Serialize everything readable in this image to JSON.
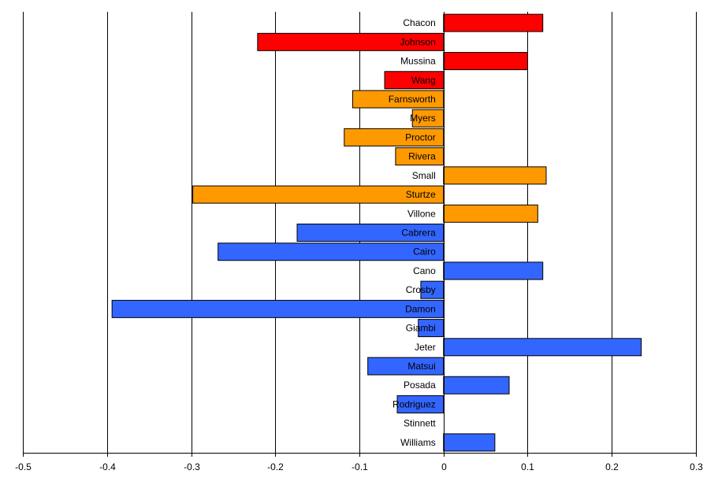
{
  "chart_data": {
    "type": "bar",
    "orientation": "horizontal",
    "title": "",
    "xlabel": "",
    "ylabel": "",
    "xlim": [
      -0.5,
      0.3
    ],
    "xticks": [
      -0.5,
      -0.4,
      -0.3,
      -0.2,
      -0.1,
      0,
      0.1,
      0.2,
      0.3
    ],
    "xtick_labels": [
      "-0.5",
      "-0.4",
      "-0.3",
      "-0.2",
      "-0.1",
      "0",
      "0.1",
      "0.2",
      "0.3"
    ],
    "grid": "vertical",
    "legend": "none",
    "colors": {
      "red": "#ff0000",
      "orange": "#ff9900",
      "blue": "#3366ff"
    },
    "categories": [
      {
        "name": "Chacon",
        "value": 0.118,
        "color": "red"
      },
      {
        "name": "Johnson",
        "value": -0.221,
        "color": "red"
      },
      {
        "name": "Mussina",
        "value": 0.1,
        "color": "red"
      },
      {
        "name": "Wang",
        "value": -0.07,
        "color": "red"
      },
      {
        "name": "Farnsworth",
        "value": -0.108,
        "color": "orange"
      },
      {
        "name": "Myers",
        "value": -0.037,
        "color": "orange"
      },
      {
        "name": "Proctor",
        "value": -0.118,
        "color": "orange"
      },
      {
        "name": "Rivera",
        "value": -0.057,
        "color": "orange"
      },
      {
        "name": "Small",
        "value": 0.122,
        "color": "orange"
      },
      {
        "name": "Sturtze",
        "value": -0.298,
        "color": "orange"
      },
      {
        "name": "Villone",
        "value": 0.112,
        "color": "orange"
      },
      {
        "name": "Cabrera",
        "value": -0.174,
        "color": "blue"
      },
      {
        "name": "Cairo",
        "value": -0.268,
        "color": "blue"
      },
      {
        "name": "Cano",
        "value": 0.118,
        "color": "blue"
      },
      {
        "name": "Crosby",
        "value": -0.027,
        "color": "blue"
      },
      {
        "name": "Damon",
        "value": -0.394,
        "color": "blue"
      },
      {
        "name": "Giambi",
        "value": -0.03,
        "color": "blue"
      },
      {
        "name": "Jeter",
        "value": 0.235,
        "color": "blue"
      },
      {
        "name": "Matsui",
        "value": -0.09,
        "color": "blue"
      },
      {
        "name": "Posada",
        "value": 0.078,
        "color": "blue"
      },
      {
        "name": "Rodriguez",
        "value": -0.055,
        "color": "blue"
      },
      {
        "name": "Stinnett",
        "value": 0,
        "color": "blue"
      },
      {
        "name": "Williams",
        "value": 0.061,
        "color": "blue"
      }
    ]
  }
}
